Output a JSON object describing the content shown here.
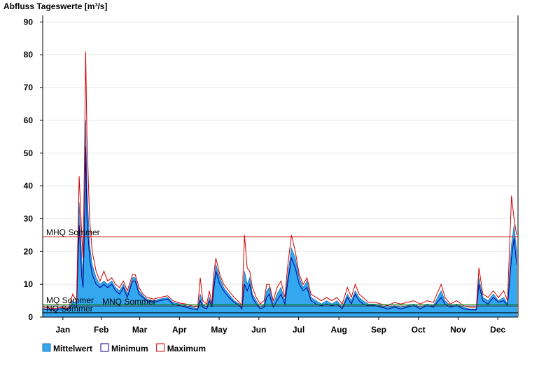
{
  "chart_data": {
    "type": "line",
    "title": "Abfluss Tageswerte [m³/s]",
    "x": [
      0,
      5,
      10,
      15,
      20,
      23,
      26,
      28,
      30,
      31,
      32,
      33,
      34,
      36,
      38,
      41,
      44,
      47,
      50,
      53,
      56,
      59,
      62,
      65,
      69,
      71,
      74,
      77,
      80,
      85,
      90,
      96,
      100,
      105,
      110,
      115,
      119,
      121,
      123,
      126,
      128,
      130,
      131,
      133,
      136,
      139,
      143,
      147,
      151,
      153,
      155,
      157,
      159,
      161,
      164,
      167,
      170,
      172,
      174,
      177,
      180,
      183,
      186,
      188,
      191,
      194,
      197,
      200,
      203,
      206,
      210,
      214,
      218,
      222,
      226,
      230,
      234,
      237,
      240,
      243,
      246,
      250,
      255,
      260,
      265,
      270,
      275,
      280,
      285,
      290,
      295,
      300,
      306,
      309,
      313,
      318,
      323,
      328,
      333,
      335,
      338,
      342,
      346,
      350,
      354,
      357,
      360,
      362,
      364
    ],
    "series": [
      {
        "name": "Mittelwert",
        "color": "#33a8f0",
        "values": [
          2.6,
          2.5,
          2.4,
          2.8,
          2.5,
          5,
          4,
          35,
          18,
          12,
          30,
          60,
          40,
          22,
          16,
          12,
          10,
          11,
          10,
          11,
          9,
          8,
          10,
          7,
          12,
          12,
          8,
          6.5,
          5.5,
          5,
          5.5,
          6,
          4.5,
          4,
          3.5,
          3,
          2.5,
          7,
          4,
          3,
          6,
          3.5,
          9,
          16,
          12,
          9,
          7,
          5,
          4,
          3,
          14,
          10,
          12,
          7,
          5,
          3,
          4,
          8,
          9,
          4,
          7,
          9,
          5,
          12,
          21,
          18,
          12,
          9,
          11,
          6,
          5,
          4,
          5,
          4,
          5,
          3,
          7,
          5,
          8,
          6,
          5,
          4,
          4,
          3.5,
          3,
          3.5,
          3,
          3.5,
          4,
          3,
          4,
          3.5,
          8,
          5,
          3.5,
          4,
          3,
          2.5,
          2.5,
          12,
          6,
          5,
          7,
          5,
          6,
          4,
          22,
          28,
          20
        ]
      },
      {
        "name": "Minimum",
        "color": "#00008b",
        "values": [
          2.4,
          2.3,
          2.2,
          2.5,
          2.3,
          4,
          3,
          28,
          12,
          9,
          25,
          52,
          30,
          18,
          13,
          10,
          9,
          10,
          9,
          10,
          8,
          7,
          9,
          6,
          11,
          11,
          7,
          6,
          5,
          4.5,
          5,
          5.5,
          4,
          3.5,
          3,
          2.5,
          2.2,
          5,
          3,
          2.5,
          5,
          3,
          7,
          14,
          10,
          8,
          6,
          4.5,
          3.5,
          2.5,
          10,
          8,
          10,
          6,
          4,
          2.5,
          3,
          6,
          7,
          3,
          5,
          7,
          4,
          10,
          18,
          15,
          10,
          8,
          9,
          5,
          4,
          3.5,
          4,
          3.5,
          4,
          2.5,
          6,
          4,
          7,
          5,
          4,
          3.5,
          3.5,
          3,
          2.5,
          3,
          2.5,
          3,
          3.5,
          2.5,
          3.5,
          3,
          6,
          4,
          3,
          3.5,
          2.5,
          2.2,
          2.2,
          10,
          5,
          4,
          6,
          4.5,
          5,
          3.5,
          18,
          24,
          16
        ]
      },
      {
        "name": "Maximum",
        "color": "#d00000",
        "values": [
          3.0,
          2.8,
          2.7,
          3.0,
          2.7,
          7,
          5,
          43,
          25,
          18,
          45,
          81,
          55,
          30,
          20,
          14,
          11,
          14,
          11,
          12,
          10,
          9,
          11,
          8,
          13,
          13,
          9,
          7,
          6,
          5.5,
          6,
          6.5,
          5,
          4.3,
          4,
          3.4,
          3,
          12,
          5,
          4,
          8,
          4,
          12,
          18,
          13,
          10,
          8,
          6,
          4.5,
          3.5,
          25,
          15,
          14,
          9,
          6,
          4,
          5,
          10,
          10,
          5,
          9,
          11,
          6,
          15,
          25,
          20,
          13,
          10,
          12,
          7,
          6,
          5,
          6,
          5,
          6,
          4,
          9,
          6,
          10,
          7,
          6,
          4.5,
          4.5,
          4,
          3.5,
          4.5,
          4,
          4.5,
          5,
          4,
          5,
          4.5,
          10,
          6,
          4,
          5,
          3.5,
          3,
          3,
          15,
          7,
          6,
          8,
          6,
          8,
          5,
          37,
          30,
          25
        ]
      }
    ],
    "xlim": [
      0,
      365
    ],
    "xticks": [
      {
        "value": 15.5,
        "label": "Jan"
      },
      {
        "value": 45,
        "label": "Feb"
      },
      {
        "value": 74.5,
        "label": "Mar"
      },
      {
        "value": 105,
        "label": "Apr"
      },
      {
        "value": 135.5,
        "label": "May"
      },
      {
        "value": 166,
        "label": "Jun"
      },
      {
        "value": 196.5,
        "label": "Jul"
      },
      {
        "value": 227.5,
        "label": "Aug"
      },
      {
        "value": 258,
        "label": "Sep"
      },
      {
        "value": 288.5,
        "label": "Oct"
      },
      {
        "value": 319,
        "label": "Nov"
      },
      {
        "value": 349.5,
        "label": "Dec"
      }
    ],
    "ylim": [
      0,
      92
    ],
    "yticks": [
      0,
      10,
      20,
      30,
      40,
      50,
      60,
      70,
      80,
      90
    ],
    "grid": true,
    "reference_lines": [
      {
        "label": "MHQ Sommer",
        "value": 24.5,
        "color": "#cc0000"
      },
      {
        "label": "MQ Sommer",
        "value": 3.8,
        "color": "#008000"
      },
      {
        "label": "MNQ Sommer",
        "value": 3.4,
        "color": "#333333"
      },
      {
        "label": "NQ Sommer",
        "value": 1.3,
        "color": "#000000"
      }
    ],
    "legend": "bottom-left"
  }
}
